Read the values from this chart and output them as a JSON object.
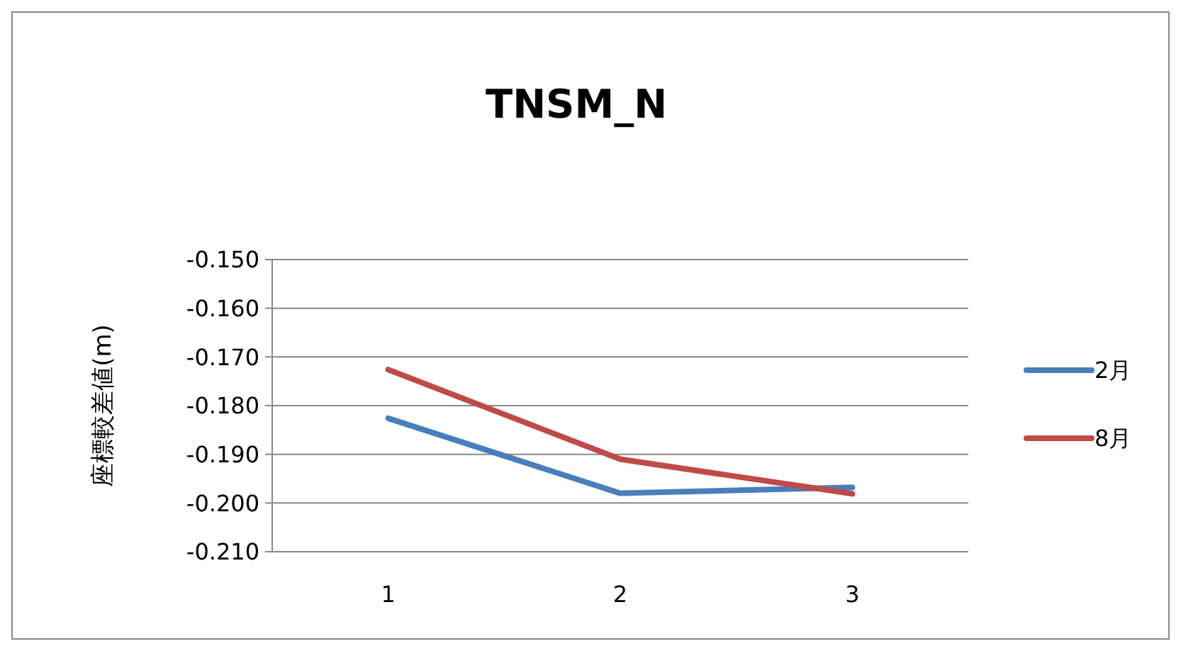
{
  "chart_data": {
    "type": "line",
    "title": "TNSM_N",
    "ylabel": "座標較差値(m)",
    "categories": [
      "1",
      "2",
      "3"
    ],
    "series": [
      {
        "name": "2月",
        "color": "#4a7ebb",
        "values": [
          -0.1826,
          -0.198,
          -0.1968
        ]
      },
      {
        "name": "8月",
        "color": "#be4b48",
        "values": [
          -0.1726,
          -0.191,
          -0.1981
        ]
      }
    ],
    "ylim": [
      -0.21,
      -0.15
    ],
    "yticks": [
      {
        "value": -0.15,
        "label": "-0.150"
      },
      {
        "value": -0.16,
        "label": "-0.160"
      },
      {
        "value": -0.17,
        "label": "-0.170"
      },
      {
        "value": -0.18,
        "label": "-0.180"
      },
      {
        "value": -0.19,
        "label": "-0.190"
      },
      {
        "value": -0.2,
        "label": "-0.200"
      },
      {
        "value": -0.21,
        "label": "-0.210"
      }
    ],
    "grid": "y",
    "legend": "right",
    "marker": "none",
    "line_style": "solid"
  }
}
